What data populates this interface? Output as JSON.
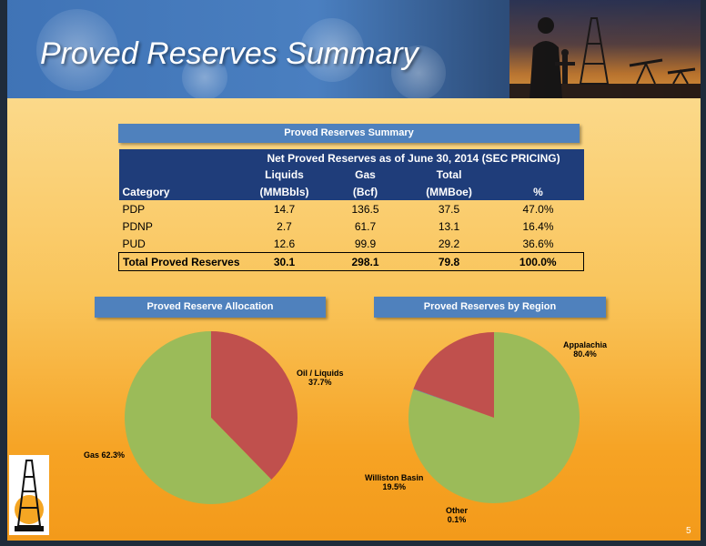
{
  "slide": {
    "title": "Proved Reserves Summary",
    "page_number": "5"
  },
  "table": {
    "banner": "Proved Reserves Summary",
    "group_header": "Net Proved Reserves as of June 30, 2014 (SEC PRICING)",
    "columns": [
      {
        "top": "",
        "bottom": "Category"
      },
      {
        "top": "Liquids",
        "bottom": "(MMBbls)"
      },
      {
        "top": "Gas",
        "bottom": "(Bcf)"
      },
      {
        "top": "Total",
        "bottom": "(MMBoe)"
      },
      {
        "top": "",
        "bottom": "%"
      }
    ],
    "rows": [
      {
        "category": "PDP",
        "liquids": "14.7",
        "gas": "136.5",
        "total": "37.5",
        "pct": "47.0%"
      },
      {
        "category": "PDNP",
        "liquids": "2.7",
        "gas": "61.7",
        "total": "13.1",
        "pct": "16.4%"
      },
      {
        "category": "PUD",
        "liquids": "12.6",
        "gas": "99.9",
        "total": "29.2",
        "pct": "36.6%"
      }
    ],
    "total_row": {
      "category": "Total Proved Reserves",
      "liquids": "30.1",
      "gas": "298.1",
      "total": "79.8",
      "pct": "100.0%"
    }
  },
  "chart_data": [
    {
      "type": "pie",
      "title": "Proved Reserve Allocation",
      "slices": [
        {
          "label": "Oil / Liquids",
          "value": 37.7,
          "display": "37.7%",
          "color": "#c0504d"
        },
        {
          "label": "Gas",
          "value": 62.3,
          "display": "62.3%",
          "color": "#9bbb59"
        }
      ]
    },
    {
      "type": "pie",
      "title": "Proved Reserves by Region",
      "slices": [
        {
          "label": "Appalachia",
          "value": 80.4,
          "display": "80.4%",
          "color": "#9bbb59"
        },
        {
          "label": "Other",
          "value": 0.1,
          "display": "0.1%",
          "color": "#4f81bd"
        },
        {
          "label": "Williston Basin",
          "value": 19.5,
          "display": "19.5%",
          "color": "#c0504d"
        }
      ]
    }
  ],
  "colors": {
    "banner": "#4f81bd",
    "table_header": "#1f3d7a",
    "gas": "#9bbb59",
    "liquids": "#c0504d",
    "other": "#4f81bd"
  }
}
